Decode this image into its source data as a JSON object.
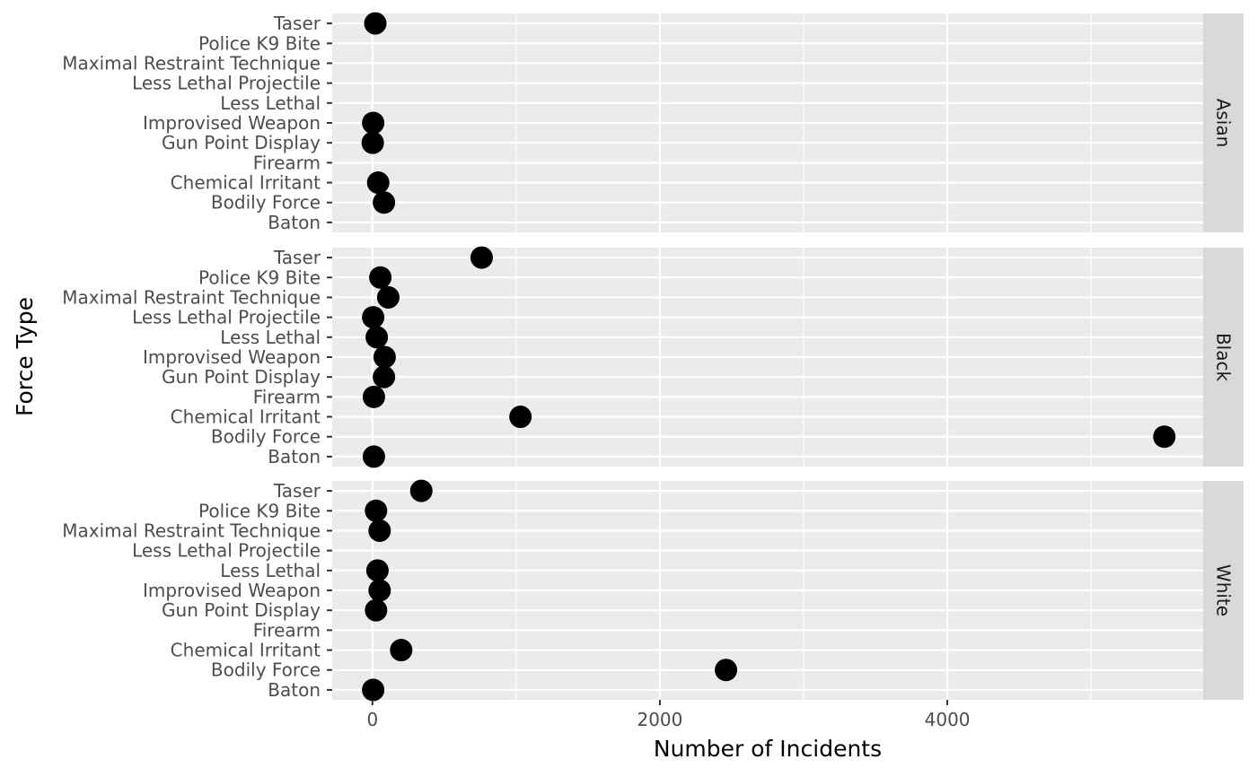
{
  "chart_data": {
    "type": "scatter",
    "xlabel": "Number of Incidents",
    "ylabel": "Force Type",
    "xlim": [
      -280,
      5780
    ],
    "x_ticks": [
      0,
      2000,
      4000
    ],
    "x_tick_labels": [
      "0",
      "2000",
      "4000"
    ],
    "x_minor_ticks": [
      1000,
      3000,
      5000
    ],
    "grid": true,
    "legend": "none",
    "categories": [
      "Baton",
      "Bodily Force",
      "Chemical Irritant",
      "Firearm",
      "Gun Point Display",
      "Improvised Weapon",
      "Less Lethal",
      "Less Lethal Projectile",
      "Maximal Restraint Technique",
      "Police K9 Bite",
      "Taser"
    ],
    "panels": [
      {
        "label": "Asian",
        "points": [
          {
            "category": "Taser",
            "value": 20
          },
          {
            "category": "Improvised Weapon",
            "value": 5
          },
          {
            "category": "Gun Point Display",
            "value": 2
          },
          {
            "category": "Chemical Irritant",
            "value": 40
          },
          {
            "category": "Bodily Force",
            "value": 80
          }
        ]
      },
      {
        "label": "Black",
        "points": [
          {
            "category": "Taser",
            "value": 760
          },
          {
            "category": "Police K9 Bite",
            "value": 55
          },
          {
            "category": "Maximal Restraint Technique",
            "value": 110
          },
          {
            "category": "Less Lethal Projectile",
            "value": 5
          },
          {
            "category": "Less Lethal",
            "value": 30
          },
          {
            "category": "Improvised Weapon",
            "value": 85
          },
          {
            "category": "Gun Point Display",
            "value": 80
          },
          {
            "category": "Firearm",
            "value": 10
          },
          {
            "category": "Chemical Irritant",
            "value": 1030
          },
          {
            "category": "Bodily Force",
            "value": 5510
          },
          {
            "category": "Baton",
            "value": 10
          }
        ]
      },
      {
        "label": "White",
        "points": [
          {
            "category": "Taser",
            "value": 340
          },
          {
            "category": "Police K9 Bite",
            "value": 25
          },
          {
            "category": "Maximal Restraint Technique",
            "value": 50
          },
          {
            "category": "Less Lethal",
            "value": 35
          },
          {
            "category": "Improvised Weapon",
            "value": 50
          },
          {
            "category": "Gun Point Display",
            "value": 25
          },
          {
            "category": "Chemical Irritant",
            "value": 200
          },
          {
            "category": "Bodily Force",
            "value": 2460
          },
          {
            "category": "Baton",
            "value": 5
          }
        ]
      }
    ],
    "colors": {
      "panel_background": "#ebebeb",
      "grid": "#ffffff",
      "strip_background": "#d9d9d9",
      "point": "#000000",
      "tick_text": "#4d4d4d"
    }
  }
}
